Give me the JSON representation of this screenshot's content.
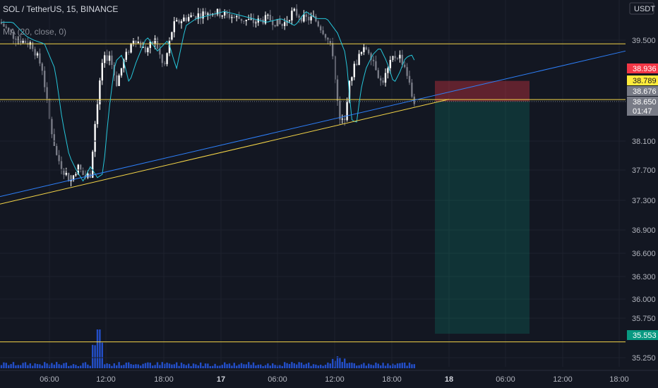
{
  "header": {
    "symbol_line": "SOL / TetherUS, 15, BINANCE",
    "indicator_line": "MA (20, close, 0)",
    "currency_badge": "USDT"
  },
  "chart_data": {
    "type": "candlestick",
    "symbol": "SOL / TetherUS",
    "interval": "15",
    "exchange": "BINANCE",
    "currency": "USDT",
    "y_ticks": [
      "39.500",
      "38.100",
      "37.700",
      "37.300",
      "36.900",
      "36.600",
      "36.300",
      "36.000",
      "35.750",
      "35.250"
    ],
    "x_ticks": [
      "06:00",
      "12:00",
      "18:00",
      "17",
      "06:00",
      "12:00",
      "18:00",
      "18",
      "06:00",
      "12:00",
      "18:00"
    ],
    "price_tags": [
      {
        "label": "38.936",
        "value": 38.936,
        "color": "#f23645"
      },
      {
        "label": "38.789",
        "value": 38.789,
        "color": "#ffeb3b"
      },
      {
        "label": "38.676",
        "value": 38.676,
        "color": "#787b86"
      },
      {
        "label": "38.650",
        "value": 38.65,
        "color": "#787b86"
      },
      {
        "label": "01:47",
        "value": null,
        "color": "#787b86"
      },
      {
        "label": "35.553",
        "value": 35.553,
        "color": "#089981"
      }
    ],
    "horizontal_levels": [
      39.45,
      38.676,
      35.45
    ],
    "position": {
      "type": "short",
      "entry": 38.65,
      "stop": 38.936,
      "target": 35.553
    },
    "grid": true
  }
}
